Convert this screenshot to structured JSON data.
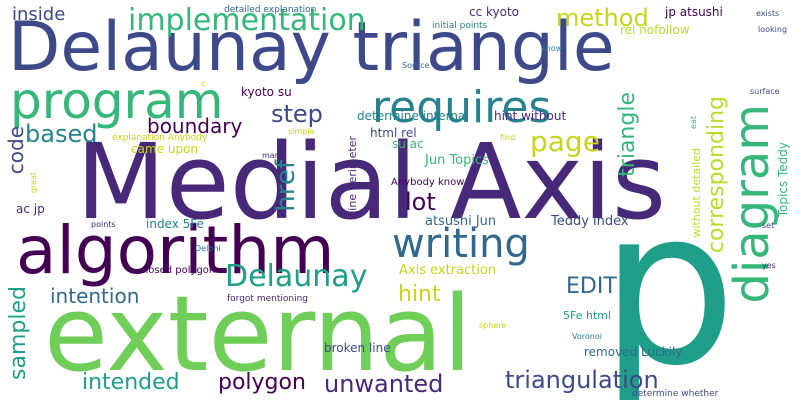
{
  "colors": {
    "background": "#ffffff",
    "dark_purple": "#440154",
    "purple": "#482878",
    "indigo": "#3e4989",
    "blue": "#31688e",
    "teal_blue": "#26828e",
    "teal": "#1f9e89",
    "green": "#35b779",
    "light_green": "#6ece58",
    "lime": "#b5de2b",
    "yellow": "#c8d418"
  },
  "words": {
    "p": "p",
    "medial_axis": "Medial Axis",
    "delaunay_triangle": "Delaunay triangle",
    "external": "external",
    "algorithm": "algorithm",
    "program": "program",
    "requires": "requires",
    "writing": "writing",
    "diagram": "diagram",
    "implementation": "implementation",
    "delaunay": "Delaunay",
    "method": "method",
    "based": "based",
    "boundary": "boundary",
    "step": "step",
    "page": "page",
    "lot": "lot",
    "href": "href",
    "triangle": "triangle",
    "corresponding": "corresponding",
    "triangulation": "triangulation",
    "polygon": "polygon",
    "unwanted": "unwanted",
    "intended": "intended",
    "intention": "intention",
    "sampled": "sampled",
    "hint": "hint",
    "edit": "EDIT",
    "code": "code",
    "inside": "inside",
    "axis_extraction": "Axis extraction",
    "jun_topics": "Jun Topics",
    "topics_teddy": "Topics Teddy",
    "teddy_index": "Teddy index",
    "atsushi_jun": "atsushi Jun",
    "cc_kyoto": "cc kyoto",
    "jp_atsushi": "jp atsushi",
    "kyoto_su": "kyoto su",
    "su_ac": "su ac",
    "ac_jp": "ac jp",
    "html_rel": "html rel",
    "rel_nofollow": "rel nofollow",
    "index_5fe": "index 5Fe",
    "fe_html": "5Fe html",
    "came_upon": "came upon",
    "determine_internal": "determine internal",
    "hint_without": "hint without",
    "without_detailed": "without detailed",
    "line_perimeter": "line perimeter",
    "anybody_know": "Anybody know",
    "removed_luckily": "removed Luckily",
    "broken_line": "broken line",
    "closed_polygon": "closed polygon",
    "forgot_mentioning": "forgot mentioning",
    "detailed_explanation": "detailed explanation",
    "explanation_anybody": "explanation Anybody",
    "initial_points": "initial points",
    "source": "Source",
    "know": "know",
    "exists": "exists",
    "looking": "looking",
    "surface": "surface",
    "simple": "simple",
    "find": "find",
    "eat": "eat",
    "man": "man",
    "great": "great",
    "points": "points",
    "delphi": "Delphi",
    "set": "set",
    "yes": "yes",
    "sphere": "sphere",
    "voronoi": "Voronoi",
    "determine_whether": "determine whether",
    "c": "c"
  }
}
